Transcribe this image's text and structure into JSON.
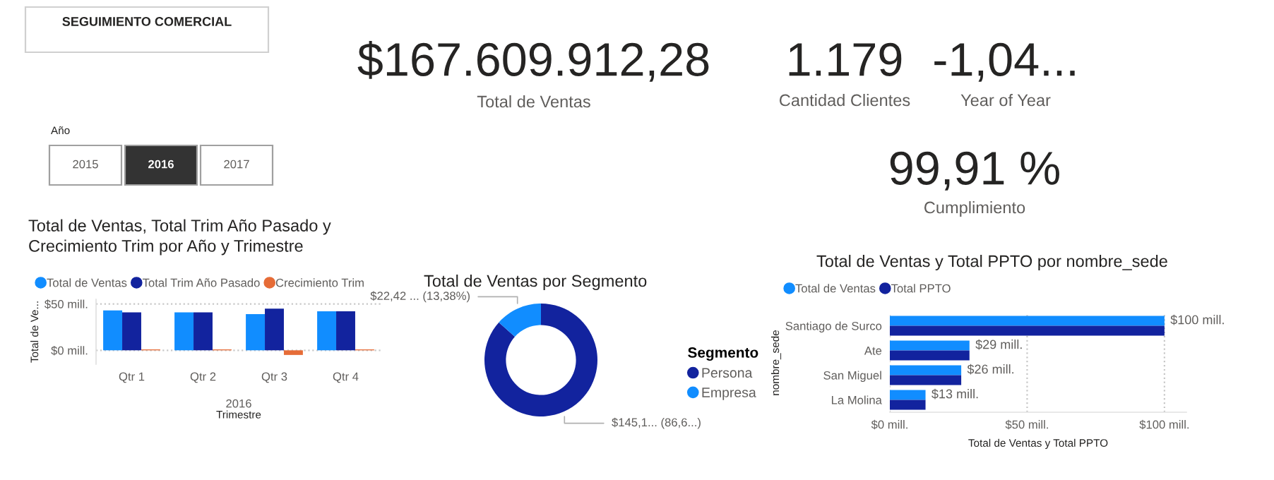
{
  "chart_data": [
    {
      "type": "other",
      "title": "SEGUIMIENTO COMERCIAL",
      "annotations": [
        "$167.609.912,28",
        "Total de Ventas",
        "1.179",
        "Cantidad Clientes",
        "-1,04...",
        "Year of Year",
        "99,91 %",
        "Cumplimiento"
      ]
    },
    {
      "type": "other",
      "title": "Año",
      "categories": [
        "2015",
        "2016",
        "2017"
      ],
      "colors": [
        "#ffffff",
        "#333333",
        "#ffffff"
      ]
    },
    {
      "type": "bar",
      "title": "Total de Ventas, Total Trim Año Pasado y\nCrecimiento Trim por Año y Trimestre",
      "xlabel": "Trimestre",
      "ylabel": "Total de Ve...",
      "categories": [
        "Qtr 1",
        "Qtr 2",
        "Qtr 3",
        "Qtr 4"
      ],
      "series": [
        {
          "name": "Total de Ventas",
          "color": "#118dff",
          "values": [
            43,
            41,
            39,
            42
          ]
        },
        {
          "name": "Total Trim Año Pasado",
          "color": "#12239e",
          "values": [
            41,
            41,
            45,
            42
          ]
        },
        {
          "name": "Crecimiento Trim",
          "color": "#e66c37",
          "values": [
            1,
            1,
            -5,
            1
          ]
        }
      ],
      "ylim": [
        -15,
        55
      ],
      "yticks": [
        {
          "value": 0,
          "label": "$0 mill."
        },
        {
          "value": 50,
          "label": "$50 mill."
        }
      ],
      "grid": "y",
      "legend": "top left",
      "annotations": [
        "2016"
      ]
    },
    {
      "type": "donut",
      "title": "Total de Ventas por Segmento",
      "legend_title": "Segmento",
      "categories": [
        "Persona",
        "Empresa"
      ],
      "values": [
        86.62,
        13.38
      ],
      "colors": [
        "#12239e",
        "#118dff"
      ],
      "value_labels": [
        "$145,1... (86,6...)",
        "$22,42 ... (13,38%)"
      ],
      "legend": "right"
    },
    {
      "type": "bar",
      "orientation": "horizontal",
      "title": "Total de Ventas y Total PPTO por nombre_sede",
      "xlabel": "Total de Ventas y Total PPTO",
      "ylabel": "nombre_sede",
      "categories": [
        "Santiago de Surco",
        "Ate",
        "San Miguel",
        "La Molina"
      ],
      "series": [
        {
          "name": "Total de Ventas",
          "color": "#118dff",
          "values": [
            100,
            29,
            26,
            13
          ],
          "value_labels": [
            "$100 mill.",
            "$29 mill.",
            "$26 mill.",
            "$13 mill."
          ]
        },
        {
          "name": "Total PPTO",
          "color": "#12239e",
          "values": [
            100,
            29,
            26,
            13
          ]
        }
      ],
      "xlim": [
        0,
        108
      ],
      "xticks": [
        {
          "value": 0,
          "label": "$0 mill."
        },
        {
          "value": 50,
          "label": "$50 mill."
        },
        {
          "value": 100,
          "label": "$100 mill."
        }
      ],
      "grid": "x",
      "legend": "top left"
    }
  ]
}
